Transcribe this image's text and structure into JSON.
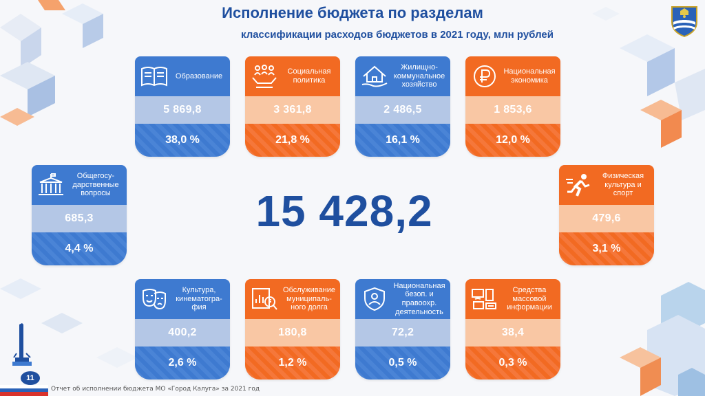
{
  "header": {
    "title": "Исполнение бюджета по разделам",
    "subtitle": "классификации расходов бюджетов в 2021 году, млн рублей"
  },
  "total": "15 428,2",
  "cards": [
    {
      "id": "education",
      "label": "Образование",
      "value": "5 869,8",
      "percent": "38,0 %",
      "color": "blue",
      "icon": "book-icon"
    },
    {
      "id": "social",
      "label": "Социальная политика",
      "value": "3 361,8",
      "percent": "21,8 %",
      "color": "orange",
      "icon": "people-hands-icon"
    },
    {
      "id": "housing",
      "label": "Жилищно-коммунальное хозяйство",
      "value": "2 486,5",
      "percent": "16,1 %",
      "color": "blue",
      "icon": "house-hand-icon"
    },
    {
      "id": "economy",
      "label": "Национальная экономика",
      "value": "1 853,6",
      "percent": "12,0 %",
      "color": "orange",
      "icon": "ruble-icon"
    },
    {
      "id": "general",
      "label": "Общегосу-дарственные вопросы",
      "value": "685,3",
      "percent": "4,4 %",
      "color": "blue",
      "icon": "government-building-icon"
    },
    {
      "id": "sport",
      "label": "Физическая культура и спорт",
      "value": "479,6",
      "percent": "3,1 %",
      "color": "orange",
      "icon": "runner-icon"
    },
    {
      "id": "culture",
      "label": "Культура, кинематогра-фия",
      "value": "400,2",
      "percent": "2,6 %",
      "color": "blue",
      "icon": "theater-masks-icon"
    },
    {
      "id": "debt",
      "label": "Обслуживание муниципаль-ного долга",
      "value": "180,8",
      "percent": "1,2 %",
      "color": "orange",
      "icon": "debt-chart-icon"
    },
    {
      "id": "security",
      "label": "Национальная безоп. и правоохр. деятельность",
      "value": "72,2",
      "percent": "0,5 %",
      "color": "blue",
      "icon": "shield-person-icon"
    },
    {
      "id": "media",
      "label": "Средства массовой информации",
      "value": "38,4",
      "percent": "0,3 %",
      "color": "orange",
      "icon": "media-devices-icon"
    }
  ],
  "footer": {
    "page_number": "11",
    "caption": "Отчет об исполнении бюджета МО «Город Калуга» за 2021 год"
  },
  "colors": {
    "blue": "#3e7ad0",
    "orange": "#f26a22",
    "title": "#1f4f9f"
  }
}
